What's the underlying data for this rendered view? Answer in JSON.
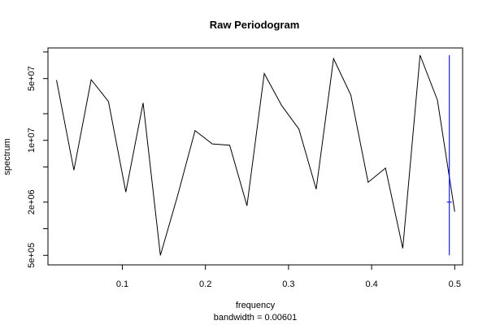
{
  "chart_data": {
    "type": "line",
    "title": "Raw Periodogram",
    "xlabel": "frequency",
    "subtitle": "bandwidth = 0.00601",
    "ylabel": "spectrum",
    "log_y": true,
    "grid": false,
    "xlim": [
      0.0105,
      0.5095
    ],
    "ylim": [
      390000,
      111000000
    ],
    "x_ticks": [
      {
        "value": 0.1,
        "label": "0.1"
      },
      {
        "value": 0.2,
        "label": "0.2"
      },
      {
        "value": 0.3,
        "label": "0.3"
      },
      {
        "value": 0.4,
        "label": "0.4"
      },
      {
        "value": 0.5,
        "label": "0.5"
      }
    ],
    "y_ticks": [
      {
        "value": 500000,
        "label": "5e+05"
      },
      {
        "value": 1000000,
        "label": ""
      },
      {
        "value": 2000000,
        "label": "2e+06"
      },
      {
        "value": 5000000,
        "label": ""
      },
      {
        "value": 10000000,
        "label": "1e+07"
      },
      {
        "value": 20000000,
        "label": ""
      },
      {
        "value": 50000000,
        "label": "5e+07"
      },
      {
        "value": 100000000,
        "label": ""
      }
    ],
    "series": [
      {
        "color": "#000000",
        "x": [
          0.0208,
          0.0417,
          0.0625,
          0.0833,
          0.1042,
          0.125,
          0.1458,
          0.1667,
          0.1875,
          0.2083,
          0.2292,
          0.25,
          0.2708,
          0.2917,
          0.3125,
          0.3333,
          0.3542,
          0.375,
          0.3958,
          0.4167,
          0.4375,
          0.4583,
          0.4792,
          0.5
        ],
        "y": [
          48000000,
          4600000,
          48500000,
          27500000,
          2600000,
          26500000,
          500000,
          2400000,
          12900000,
          9100000,
          8800000,
          1820000,
          57000000,
          24800000,
          13400000,
          2800000,
          84000000,
          32500000,
          3350000,
          4850000,
          600000,
          92000000,
          28500000,
          1560000
        ]
      }
    ],
    "bandwidth_marker": {
      "color": "#0000ff",
      "x": 0.4935,
      "center": 2000000,
      "lower": 500000,
      "upper": 92000000,
      "half_width": 0.003
    }
  }
}
